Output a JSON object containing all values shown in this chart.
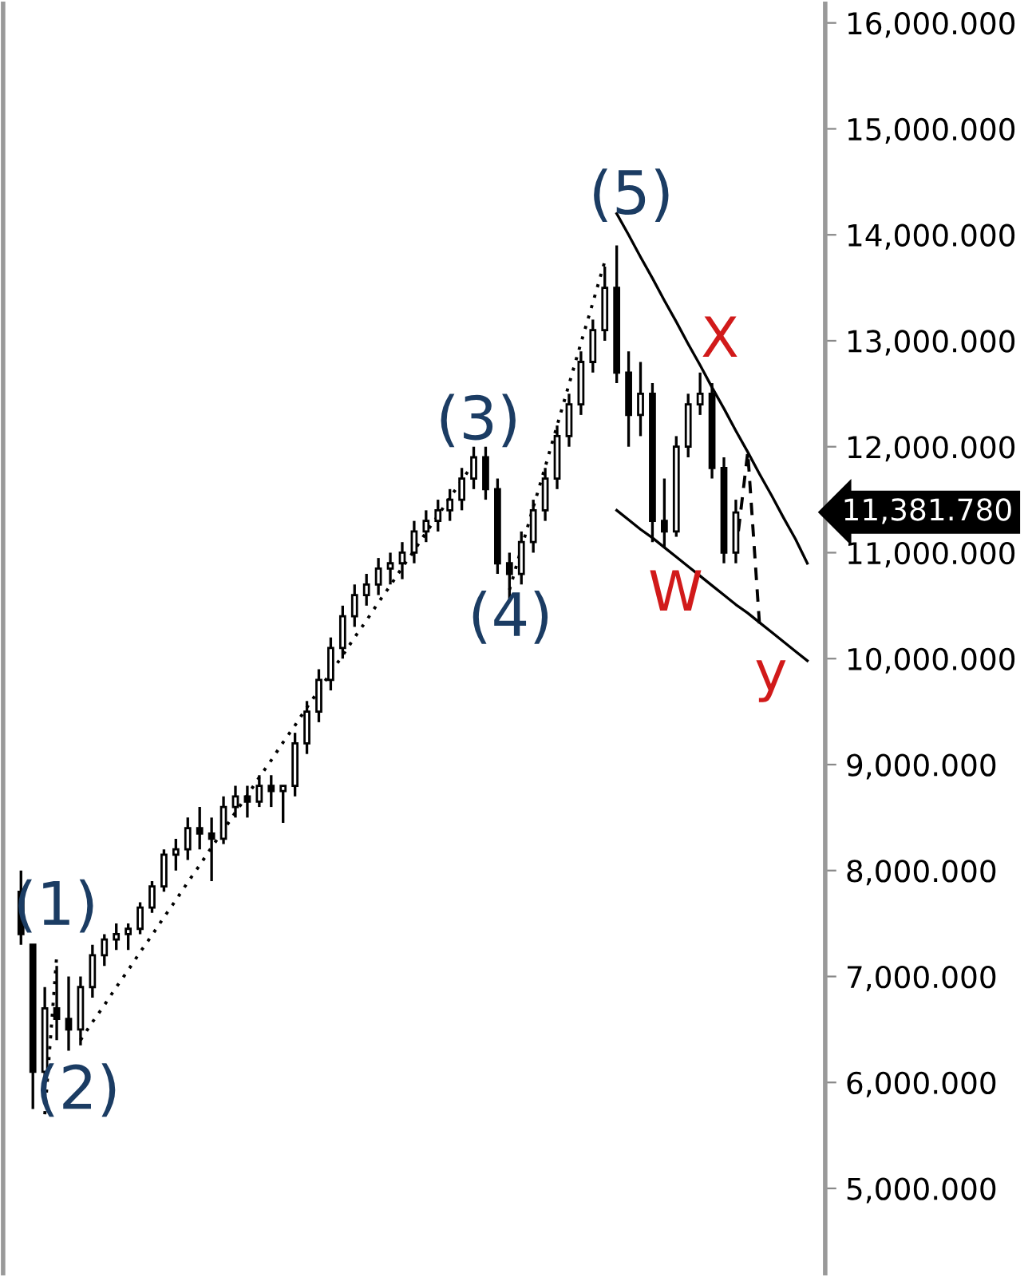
{
  "chart_data": {
    "type": "candlestick",
    "categories": [
      null,
      null,
      null,
      null,
      null,
      null,
      null,
      null,
      null,
      null,
      null,
      null,
      null,
      null,
      null,
      null,
      null,
      null,
      null,
      null,
      null,
      null,
      null,
      null,
      null,
      null,
      null,
      null,
      null,
      null,
      null,
      null,
      null,
      null,
      null,
      null,
      null,
      null,
      null,
      null,
      null,
      null,
      null,
      null,
      null,
      null,
      null,
      null,
      null,
      null,
      null,
      null,
      null,
      null,
      null,
      null,
      null,
      null,
      null,
      null,
      null,
      null,
      null,
      null,
      null,
      null,
      null,
      null,
      null
    ],
    "ohlc": [
      null,
      [
        7800,
        8000,
        7300,
        7400
      ],
      [
        7300,
        7300,
        5750,
        6100
      ],
      [
        6100,
        6900,
        5900,
        6700
      ],
      [
        6700,
        7100,
        6400,
        6600
      ],
      [
        6600,
        7000,
        6300,
        6500
      ],
      [
        6500,
        7000,
        6350,
        6900
      ],
      [
        6900,
        7300,
        6800,
        7200
      ],
      [
        7200,
        7400,
        7100,
        7350
      ],
      [
        7350,
        7500,
        7250,
        7400
      ],
      [
        7400,
        7500,
        7250,
        7450
      ],
      [
        7450,
        7700,
        7400,
        7650
      ],
      [
        7650,
        7900,
        7600,
        7850
      ],
      [
        7850,
        8200,
        7800,
        8150
      ],
      [
        8150,
        8300,
        8000,
        8200
      ],
      [
        8200,
        8500,
        8100,
        8400
      ],
      [
        8400,
        8600,
        8200,
        8350
      ],
      [
        8350,
        8500,
        7900,
        8300
      ],
      [
        8300,
        8700,
        8250,
        8600
      ],
      [
        8600,
        8800,
        8500,
        8700
      ],
      [
        8700,
        8800,
        8500,
        8650
      ],
      [
        8650,
        8900,
        8600,
        8800
      ],
      [
        8800,
        8900,
        8600,
        8750
      ],
      [
        8750,
        8800,
        8450,
        8800
      ],
      [
        8800,
        9300,
        8700,
        9200
      ],
      [
        9200,
        9600,
        9100,
        9500
      ],
      [
        9500,
        9900,
        9400,
        9800
      ],
      [
        9800,
        10200,
        9700,
        10100
      ],
      [
        10100,
        10500,
        10000,
        10400
      ],
      [
        10400,
        10700,
        10300,
        10600
      ],
      [
        10600,
        10800,
        10500,
        10700
      ],
      [
        10700,
        10950,
        10600,
        10850
      ],
      [
        10850,
        11000,
        10700,
        10900
      ],
      [
        10900,
        11100,
        10750,
        11000
      ],
      [
        11000,
        11300,
        10900,
        11200
      ],
      [
        11200,
        11400,
        11100,
        11300
      ],
      [
        11300,
        11500,
        11200,
        11400
      ],
      [
        11400,
        11600,
        11300,
        11500
      ],
      [
        11500,
        11800,
        11400,
        11700
      ],
      [
        11700,
        12000,
        11600,
        11900
      ],
      [
        11900,
        12000,
        11500,
        11600
      ],
      [
        11600,
        11700,
        10800,
        10900
      ],
      [
        10900,
        11000,
        10550,
        10800
      ],
      [
        10800,
        11200,
        10700,
        11100
      ],
      [
        11100,
        11500,
        11000,
        11400
      ],
      [
        11400,
        11800,
        11300,
        11700
      ],
      [
        11700,
        12200,
        11600,
        12100
      ],
      [
        12100,
        12500,
        12000,
        12400
      ],
      [
        12400,
        12900,
        12300,
        12800
      ],
      [
        12800,
        13200,
        12700,
        13100
      ],
      [
        13100,
        13700,
        13000,
        13500
      ],
      [
        13500,
        13900,
        12600,
        12700
      ],
      [
        12700,
        12900,
        12000,
        12300
      ],
      [
        12300,
        12800,
        12100,
        12500
      ],
      [
        12500,
        12600,
        11100,
        11300
      ],
      [
        11300,
        11700,
        11050,
        11200
      ],
      [
        11200,
        12100,
        11150,
        12000
      ],
      [
        12000,
        12500,
        11900,
        12400
      ],
      [
        12400,
        12700,
        12300,
        12500
      ],
      [
        12500,
        12600,
        11700,
        11800
      ],
      [
        11800,
        11900,
        10900,
        11000
      ],
      [
        11000,
        11500,
        10900,
        11380
      ],
      null,
      null,
      null,
      null,
      null,
      null,
      null
    ],
    "series": [
      {
        "type": "line",
        "line_style": "dotted",
        "color": "#000000",
        "values": [
          null,
          null,
          null,
          null,
          null,
          null,
          6400,
          6570,
          6730,
          6900,
          7060,
          7230,
          7390,
          7560,
          7720,
          7890,
          8050,
          8220,
          8380,
          8550,
          8710,
          8880,
          9040,
          9210,
          9370,
          9540,
          9700,
          9870,
          10030,
          10200,
          10360,
          10530,
          10690,
          10860,
          11020,
          11190,
          11350,
          11520,
          11680,
          11850,
          null,
          null,
          null,
          null,
          null,
          null,
          null,
          null,
          null,
          null,
          null,
          null,
          null,
          null,
          null,
          null,
          null,
          null,
          null,
          null,
          null,
          null,
          null,
          null,
          null,
          null,
          null,
          null,
          null
        ]
      },
      {
        "type": "line",
        "line_style": "dotted",
        "color": "#000000",
        "values": [
          null,
          null,
          null,
          null,
          null,
          null,
          null,
          null,
          null,
          null,
          null,
          null,
          null,
          null,
          null,
          null,
          null,
          null,
          null,
          null,
          null,
          null,
          null,
          null,
          null,
          null,
          null,
          null,
          null,
          null,
          null,
          null,
          null,
          null,
          null,
          null,
          null,
          null,
          null,
          null,
          null,
          null,
          10650,
          11040,
          11430,
          11810,
          12200,
          12590,
          12980,
          13360,
          13750,
          null,
          null,
          null,
          null,
          null,
          null,
          null,
          null,
          null,
          null,
          null,
          null,
          null,
          null,
          null,
          null,
          null,
          null
        ]
      },
      {
        "type": "line",
        "line_style": "dotted",
        "color": "#000000",
        "values": [
          null,
          null,
          null,
          5700,
          7200,
          null,
          null,
          null,
          null,
          null,
          null,
          null,
          null,
          null,
          null,
          null,
          null,
          null,
          null,
          null,
          null,
          null,
          null,
          null,
          null,
          null,
          null,
          null,
          null,
          null,
          null,
          null,
          null,
          null,
          null,
          null,
          null,
          null,
          null,
          null,
          null,
          null,
          null,
          null,
          null,
          null,
          null,
          null,
          null,
          null,
          null,
          null,
          null,
          null,
          null,
          null,
          null,
          null,
          null,
          null,
          null,
          null,
          null,
          null,
          null,
          null,
          null,
          null,
          null
        ]
      },
      {
        "type": "line",
        "line_style": "solid",
        "color": "#000000",
        "values": [
          null,
          null,
          null,
          null,
          null,
          null,
          null,
          null,
          null,
          null,
          null,
          null,
          null,
          null,
          null,
          null,
          null,
          null,
          null,
          null,
          null,
          null,
          null,
          null,
          null,
          null,
          null,
          null,
          null,
          null,
          null,
          null,
          null,
          null,
          null,
          null,
          null,
          null,
          null,
          null,
          null,
          null,
          null,
          null,
          null,
          null,
          null,
          null,
          null,
          null,
          null,
          14200,
          14000,
          13790,
          13590,
          13380,
          13180,
          12970,
          12770,
          12560,
          12360,
          12150,
          11950,
          11740,
          11540,
          11330,
          11130,
          10900,
          null
        ]
      },
      {
        "type": "line",
        "line_style": "solid",
        "color": "#000000",
        "values": [
          null,
          null,
          null,
          null,
          null,
          null,
          null,
          null,
          null,
          null,
          null,
          null,
          null,
          null,
          null,
          null,
          null,
          null,
          null,
          null,
          null,
          null,
          null,
          null,
          null,
          null,
          null,
          null,
          null,
          null,
          null,
          null,
          null,
          null,
          null,
          null,
          null,
          null,
          null,
          null,
          null,
          null,
          null,
          null,
          null,
          null,
          null,
          null,
          null,
          null,
          null,
          11400,
          11310,
          11220,
          11140,
          11050,
          10960,
          10870,
          10780,
          10690,
          10600,
          10510,
          10430,
          10340,
          10250,
          10160,
          10070,
          9980,
          null
        ]
      },
      {
        "type": "line",
        "line_style": "dashed",
        "color": "#000000",
        "values": [
          null,
          null,
          null,
          null,
          null,
          null,
          null,
          null,
          null,
          null,
          null,
          null,
          null,
          null,
          null,
          null,
          null,
          null,
          null,
          null,
          null,
          null,
          null,
          null,
          null,
          null,
          null,
          null,
          null,
          null,
          null,
          null,
          null,
          null,
          null,
          null,
          null,
          null,
          null,
          null,
          null,
          null,
          null,
          null,
          null,
          null,
          null,
          null,
          null,
          null,
          null,
          null,
          null,
          null,
          null,
          null,
          null,
          null,
          null,
          null,
          null,
          11000,
          11950,
          10300,
          null,
          null,
          null,
          null,
          null
        ]
      }
    ],
    "ylim": [
      4200,
      16180
    ],
    "yticks": [
      {
        "value": 5000,
        "label": "5,000.000"
      },
      {
        "value": 6000,
        "label": "6,000.000"
      },
      {
        "value": 7000,
        "label": "7,000.000"
      },
      {
        "value": 8000,
        "label": "8,000.000"
      },
      {
        "value": 9000,
        "label": "9,000.000"
      },
      {
        "value": 10000,
        "label": "10,000.000"
      },
      {
        "value": 11000,
        "label": "11,000.000"
      },
      {
        "value": 12000,
        "label": "12,000.000"
      },
      {
        "value": 13000,
        "label": "13,000.000"
      },
      {
        "value": 14000,
        "label": "14,000.000"
      },
      {
        "value": 15000,
        "label": "15,000.000"
      },
      {
        "value": 16000,
        "label": "16,000.000"
      }
    ],
    "tick_labels": "y",
    "annotations": [
      "(1)",
      "(2)",
      "(3)",
      "(4)",
      "(5)",
      "X",
      "W",
      "y",
      "11,381.780"
    ]
  }
}
